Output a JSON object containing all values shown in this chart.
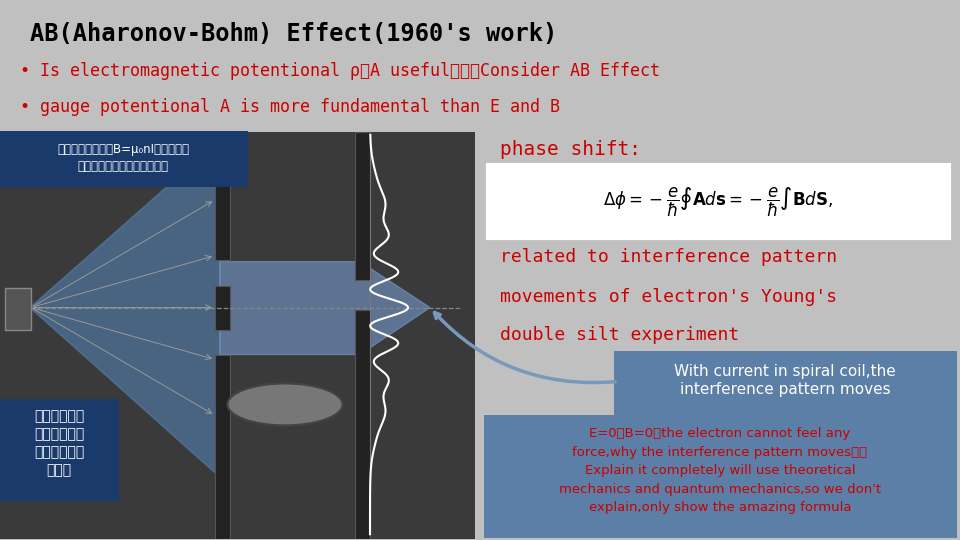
{
  "title": "AB(Aharonov-Bohm) Effect(1960's work)",
  "bullet1": "• Is electromagnetic potentional ρ、A useful？？？Consider AB Effect",
  "bullet2": "• gauge potentional A is more fundamental than E and B",
  "chinese_label1_line1": "密绕螺线圈，内部B=μ₀nI，外部电场",
  "chinese_label1_line2": "磁场均为零。给螺线圈通电流",
  "phase_shift_label": "phase shift:",
  "related_text": "related to interference pattern",
  "movements_text": "movements of electron's Young's",
  "double_silt_text": "double silt experiment",
  "box1_text": "With current in spiral coil,the\ninterference pattern moves",
  "box2_line1": "E=0，B=0，the electron cannot feel any",
  "box2_line2": "force,why the interference pattern moves？？",
  "box2_line3": "Explain it completely will use theoretical",
  "box2_line4": "mechanics and quantum mechanics,so we don't",
  "box2_line5": "explain,only show the amazing formula",
  "chinese_label2_line1": "电子的杨氏双",
  "chinese_label2_line2": "缝干渉实验，",
  "chinese_label2_line3": "双缝后加密绕",
  "chinese_label2_line4": "螺线管",
  "bg_color": "#c0c0c0",
  "title_color": "#000000",
  "bullet_color": "#cc0000",
  "phase_color": "#cc0000",
  "formula_box_color": "#ffffff",
  "formula_text_color": "#000000",
  "box1_bg": "#5b7fa6",
  "box1_text_color": "#ffffff",
  "box2_bg": "#5b7fa6",
  "box2_text_color": "#cc0000",
  "chinese_box_bg": "#1a3a6b",
  "chinese_text_color": "#ffffff",
  "chinese_label2_bg": "#1a3a6b",
  "photo_bg": "#3a3a3a",
  "barrier_color": "#222222",
  "barrier_edge": "#555555",
  "wave_color": "#ffffff",
  "src_color": "#555555",
  "beam_color": "#5588bb",
  "dashed_color": "#888888"
}
